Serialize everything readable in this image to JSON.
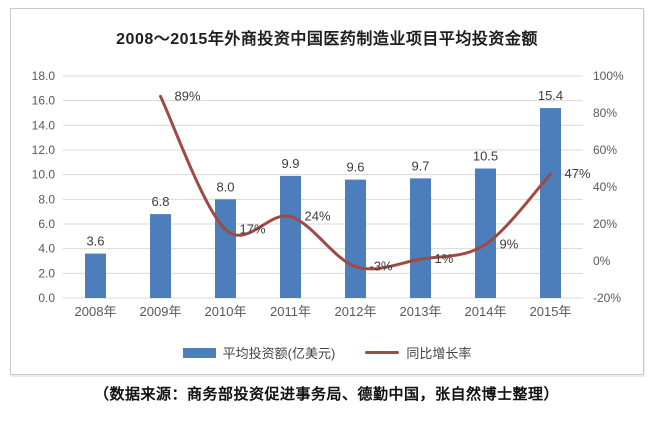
{
  "title": "2008～2015年外商投资中国医药制造业项目平均投资金额",
  "source_note": "（数据来源：商务部投资促进事务局、德勤中国，张自然博士整理）",
  "legend": [
    {
      "label": "平均投资额(亿美元)",
      "color": "#4B7EBB"
    },
    {
      "label": "同比增长率",
      "color": "#A04A45"
    }
  ],
  "chart_data": {
    "type": "bar",
    "subtype": "bar+line combo, dual axis",
    "title": "2008～2015年外商投资中国医药制造业项目平均投资金额",
    "categories": [
      "2008年",
      "2009年",
      "2010年",
      "2011年",
      "2012年",
      "2013年",
      "2014年",
      "2015年"
    ],
    "series": [
      {
        "name": "平均投资额(亿美元)",
        "type": "bar",
        "axis": "left",
        "color": "#4B7EBB",
        "values": [
          3.6,
          6.8,
          8.0,
          9.9,
          9.6,
          9.7,
          10.5,
          15.4
        ],
        "labels": [
          "3.6",
          "6.8",
          "8.0",
          "9.9",
          "9.6",
          "9.7",
          "10.5",
          "15.4"
        ]
      },
      {
        "name": "同比增长率",
        "type": "line",
        "axis": "right",
        "color": "#A04A45",
        "values": [
          null,
          89,
          17,
          24,
          -3,
          1,
          9,
          47
        ],
        "labels": [
          "",
          "89%",
          "17%",
          "24%",
          "-3%",
          "1%",
          "9%",
          "47%"
        ]
      }
    ],
    "left_axis": {
      "min": 0,
      "max": 18,
      "step": 2,
      "tick_labels": [
        "18.0",
        "16.0",
        "14.0",
        "12.0",
        "10.0",
        "8.0",
        "6.0",
        "4.0",
        "2.0",
        "0.0"
      ]
    },
    "right_axis": {
      "min": -20,
      "max": 100,
      "step": 20,
      "tick_labels": [
        "100%",
        "80%",
        "60%",
        "40%",
        "20%",
        "0%",
        "-20%"
      ]
    },
    "grid": true,
    "grid_color": "#DADADA",
    "legend_position": "bottom"
  }
}
